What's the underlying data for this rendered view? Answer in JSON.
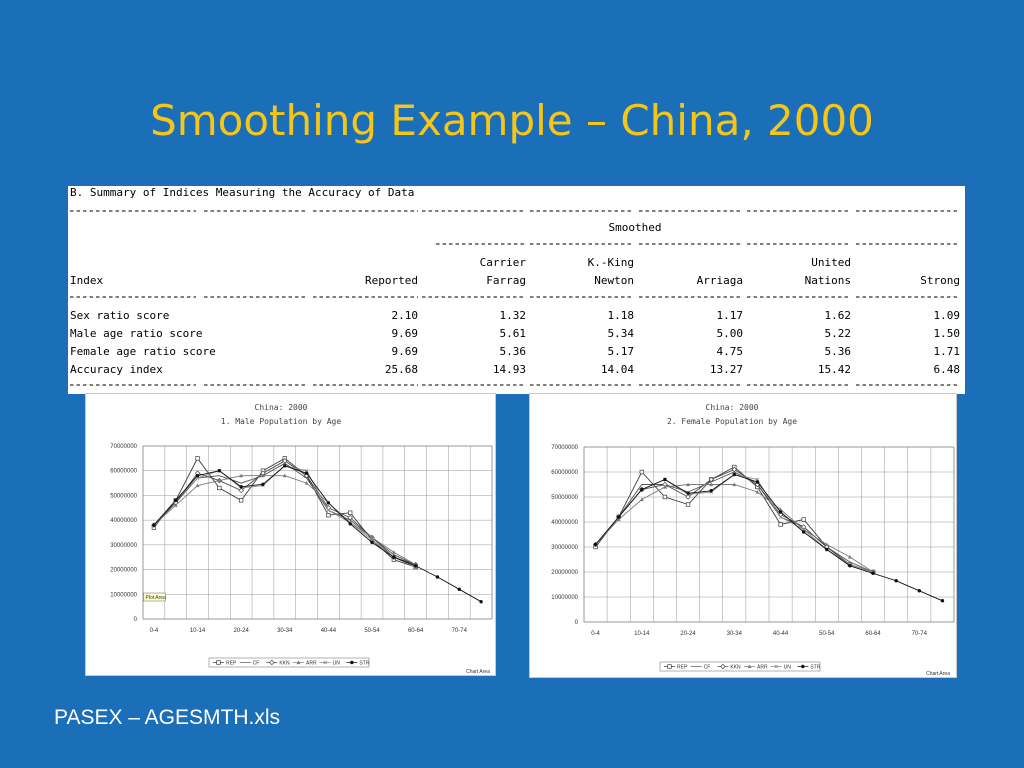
{
  "title": "Smoothing Example – China, 2000",
  "footer": "PASEX – AGESMTH.xls",
  "table": {
    "heading": "B. Summary of Indices Measuring the Accuracy of Data",
    "smoothed_label": "Smoothed",
    "columns": [
      {
        "line1": "",
        "line2": "Index"
      },
      {
        "line1": "",
        "line2": "Reported"
      },
      {
        "line1": "Carrier",
        "line2": "Farrag"
      },
      {
        "line1": "K.-King",
        "line2": "Newton"
      },
      {
        "line1": "",
        "line2": "Arriaga"
      },
      {
        "line1": "United",
        "line2": "Nations"
      },
      {
        "line1": "",
        "line2": "Strong"
      }
    ],
    "rows": [
      [
        "Sex ratio score",
        "2.10",
        "1.32",
        "1.18",
        "1.17",
        "1.62",
        "1.09"
      ],
      [
        "Male age ratio score",
        "9.69",
        "5.61",
        "5.34",
        "5.00",
        "5.22",
        "1.50"
      ],
      [
        "Female age ratio score",
        "9.69",
        "5.36",
        "5.17",
        "4.75",
        "5.36",
        "1.71"
      ],
      [
        "Accuracy index",
        "25.68",
        "14.93",
        "14.04",
        "13.27",
        "15.42",
        "6.48"
      ]
    ]
  },
  "chart_data": [
    {
      "type": "line",
      "title": "China: 2000",
      "subtitle": "1.  Male Population by Age",
      "plot_area_label": "Plot Area",
      "chart_area_label": "Chart Area",
      "ylim": [
        0,
        70000000
      ],
      "yticks": [
        "70000000",
        "60000000",
        "50000000",
        "40000000",
        "30000000",
        "20000000",
        "10000000",
        "0"
      ],
      "x_tick_labels": [
        "0-4",
        "10-14",
        "20-24",
        "30-34",
        "40-44",
        "50-54",
        "60-64",
        "70-74"
      ],
      "categories": [
        "0-4",
        "5-9",
        "10-14",
        "15-19",
        "20-24",
        "25-29",
        "30-34",
        "35-39",
        "40-44",
        "45-49",
        "50-54",
        "55-59",
        "60-64",
        "65-69",
        "70-74",
        "75-79"
      ],
      "series": [
        {
          "name": "REP",
          "values": [
            37000000,
            48000000,
            65000000,
            53000000,
            48000000,
            60000000,
            65000000,
            58000000,
            42000000,
            43000000,
            32000000,
            24000000,
            21000000,
            null,
            null,
            null
          ]
        },
        {
          "name": "CF",
          "values": [
            38000000,
            47000000,
            57000000,
            58000000,
            55000000,
            58000000,
            63000000,
            57000000,
            44000000,
            40000000,
            33000000,
            26000000,
            22000000,
            null,
            null,
            null
          ]
        },
        {
          "name": "KKN",
          "values": [
            38000000,
            47000000,
            59000000,
            56000000,
            52000000,
            59000000,
            64000000,
            58000000,
            45000000,
            41000000,
            33000000,
            25000000,
            22000000,
            null,
            null,
            null
          ]
        },
        {
          "name": "ARR",
          "values": [
            38000000,
            46000000,
            54000000,
            56000000,
            58000000,
            58000000,
            58000000,
            55000000,
            47000000,
            39000000,
            33000000,
            27000000,
            22000000,
            null,
            null,
            null
          ]
        },
        {
          "name": "UN",
          "values": [
            38000000,
            48000000,
            57000000,
            60000000,
            53000000,
            54000000,
            62000000,
            60000000,
            44000000,
            39000000,
            32000000,
            25000000,
            21000000,
            null,
            null,
            null
          ]
        },
        {
          "name": "STR",
          "values": [
            38000000,
            48000000,
            58000000,
            60000000,
            53500000,
            54500000,
            62000000,
            59000000,
            47000000,
            38500000,
            31000000,
            25000000,
            21500000,
            17000000,
            12000000,
            7000000
          ]
        }
      ]
    },
    {
      "type": "line",
      "title": "China: 2000",
      "subtitle": "2.  Female Population by Age",
      "chart_area_label": "Chart Area",
      "ylim": [
        0,
        70000000
      ],
      "yticks": [
        "70000000",
        "60000000",
        "50000000",
        "40000000",
        "30000000",
        "20000000",
        "10000000",
        "0"
      ],
      "x_tick_labels": [
        "0-4",
        "10-14",
        "20-24",
        "30-34",
        "40-44",
        "50-54",
        "60-64",
        "70-74"
      ],
      "categories": [
        "0-4",
        "5-9",
        "10-14",
        "15-19",
        "20-24",
        "25-29",
        "30-34",
        "35-39",
        "40-44",
        "45-49",
        "50-54",
        "55-59",
        "60-64",
        "65-69",
        "70-74",
        "75-79"
      ],
      "series": [
        {
          "name": "REP",
          "values": [
            30000000,
            42000000,
            60000000,
            50000000,
            47000000,
            57000000,
            62000000,
            54000000,
            39000000,
            41000000,
            30000000,
            23000000,
            20000000,
            null,
            null,
            null
          ]
        },
        {
          "name": "CF",
          "values": [
            31000000,
            42000000,
            55000000,
            55000000,
            52000000,
            56000000,
            60000000,
            55000000,
            42000000,
            38000000,
            30000000,
            24000000,
            20000000,
            null,
            null,
            null
          ]
        },
        {
          "name": "KKN",
          "values": [
            31000000,
            42000000,
            53000000,
            55000000,
            50000000,
            57000000,
            61000000,
            55000000,
            43000000,
            38000000,
            30000000,
            23000000,
            20000000,
            null,
            null,
            null
          ]
        },
        {
          "name": "ARR",
          "values": [
            31000000,
            41000000,
            49000000,
            54000000,
            55000000,
            55000000,
            55000000,
            52000000,
            45000000,
            37000000,
            31000000,
            26000000,
            20000000,
            null,
            null,
            null
          ]
        },
        {
          "name": "UN",
          "values": [
            31000000,
            42000000,
            53000000,
            57000000,
            51000000,
            52000000,
            59000000,
            57000000,
            42000000,
            37000000,
            29000000,
            23000000,
            20000000,
            null,
            null,
            null
          ]
        },
        {
          "name": "STR",
          "values": [
            31000000,
            42000000,
            53000000,
            57000000,
            51500000,
            52500000,
            59000000,
            56000000,
            44000000,
            36000000,
            29000000,
            22500000,
            19500000,
            16500000,
            12500000,
            8500000
          ]
        }
      ]
    }
  ]
}
